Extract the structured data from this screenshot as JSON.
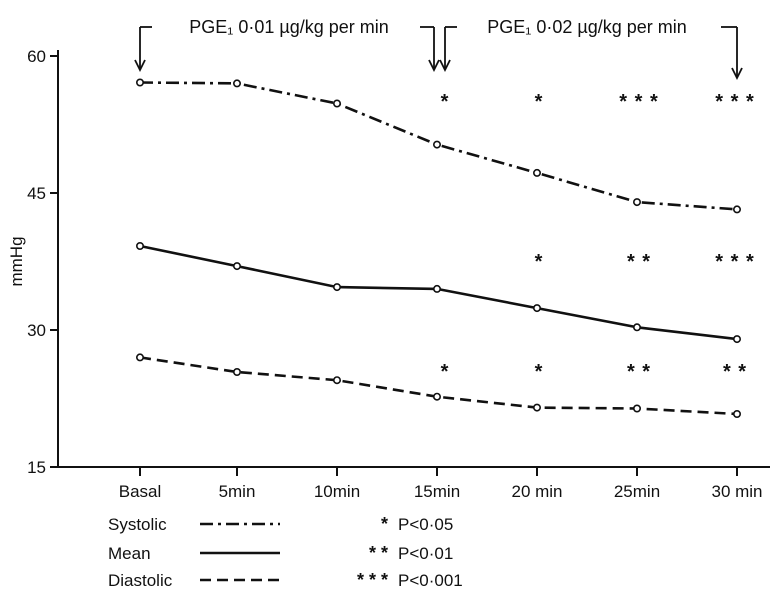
{
  "chart_data": {
    "type": "line",
    "ylabel": "mmHg",
    "ylim": [
      15,
      60
    ],
    "yticks": [
      15,
      30,
      45,
      60
    ],
    "categories": [
      "Basal",
      "5min",
      "10min",
      "15min",
      "20 min",
      "25min",
      "30 min"
    ],
    "series": [
      {
        "name": "Systolic",
        "dash": "dashdot",
        "values": [
          57.1,
          57.0,
          54.8,
          50.3,
          47.2,
          44.0,
          43.2
        ]
      },
      {
        "name": "Mean",
        "dash": "solid",
        "values": [
          39.2,
          37.0,
          34.7,
          34.5,
          32.4,
          30.3,
          29.0
        ]
      },
      {
        "name": "Diastolic",
        "dash": "dashed",
        "values": [
          27.0,
          25.4,
          24.5,
          22.7,
          21.5,
          21.4,
          20.8
        ]
      }
    ],
    "significance": [
      {
        "series": "Systolic",
        "marks": [
          "",
          "",
          "",
          "*",
          "*",
          "***",
          "***"
        ]
      },
      {
        "series": "Mean",
        "marks": [
          "",
          "",
          "",
          "",
          "*",
          "**",
          "***"
        ]
      },
      {
        "series": "Diastolic",
        "marks": [
          "",
          "",
          "",
          "*",
          "*",
          "**",
          "**"
        ]
      }
    ],
    "annotations": [
      {
        "text": "PGE₁ 0·01 µg/kg per min",
        "from": 0,
        "to": 3
      },
      {
        "text": "PGE₁ 0·02 µg/kg per min",
        "from": 3,
        "to": 6
      }
    ],
    "legend": {
      "placement": "bottom-left",
      "entries": [
        {
          "label": "Systolic",
          "dash": "dashdot"
        },
        {
          "label": "Mean",
          "dash": "solid"
        },
        {
          "label": "Diastolic",
          "dash": "dashed"
        }
      ],
      "significance_key": [
        {
          "stars": "*",
          "text": "P<0·05"
        },
        {
          "stars": "* *",
          "text": "P<0·01"
        },
        {
          "stars": "* * *",
          "text": "P<0·001"
        }
      ]
    },
    "grid": false
  }
}
